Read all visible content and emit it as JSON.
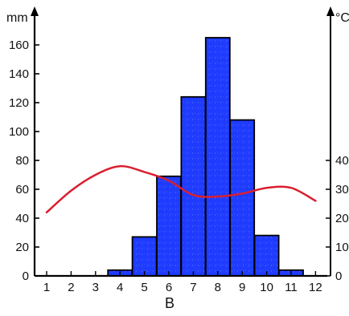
{
  "chart_data": {
    "type": "bar",
    "subtitle": "B",
    "x": [
      "1",
      "2",
      "3",
      "4",
      "5",
      "6",
      "7",
      "8",
      "9",
      "10",
      "11",
      "12"
    ],
    "precipitation_axis": {
      "unit": "mm",
      "min": 0,
      "max": 170,
      "ticks": [
        "0",
        "20",
        "40",
        "60",
        "80",
        "100",
        "120",
        "140",
        "160"
      ]
    },
    "temperature_axis": {
      "unit": "°C",
      "ticks": [
        "0",
        "10",
        "20",
        "30",
        "40"
      ]
    },
    "series": [
      {
        "type": "bar",
        "axis": "left",
        "values": [
          0,
          0,
          0,
          4,
          27,
          69,
          124,
          165,
          108,
          28,
          4,
          0
        ],
        "color": "#1f3cff"
      },
      {
        "type": "line",
        "axis": "right",
        "values": [
          22,
          29.5,
          35,
          38,
          36,
          33,
          28,
          27.5,
          28.5,
          30.5,
          30.5,
          26
        ],
        "color": "#d91f2f"
      }
    ],
    "grid": false,
    "legend": "none"
  }
}
